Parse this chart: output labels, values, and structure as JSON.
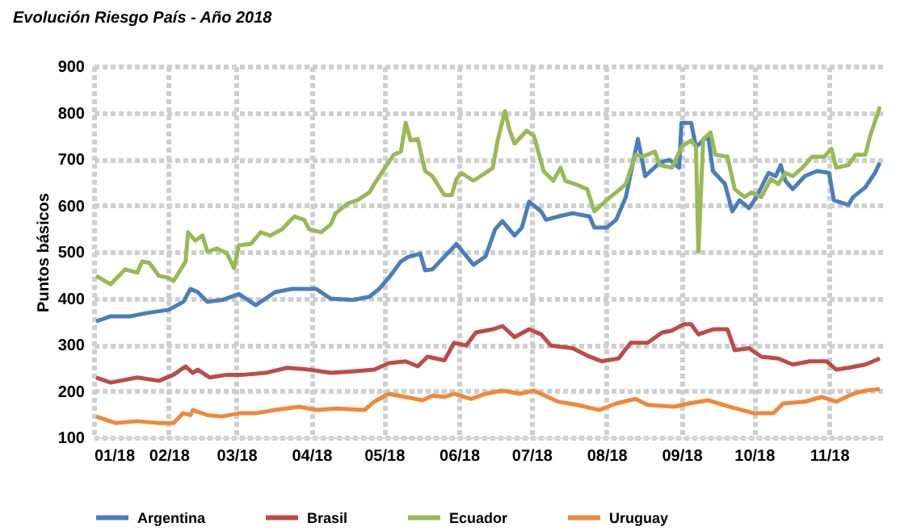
{
  "chart_data": {
    "type": "line",
    "title": "Evolución Riesgo País - Año 2018",
    "ylabel": "Puntos básicos",
    "xlim": [
      "2018-01-01",
      "2018-11-23"
    ],
    "xticks": [
      {
        "value": "2018-01-01",
        "label": "01/18"
      },
      {
        "value": "2018-02-01",
        "label": "02/18"
      },
      {
        "value": "2018-03-01",
        "label": "03/18"
      },
      {
        "value": "2018-04-01",
        "label": "04/18"
      },
      {
        "value": "2018-05-01",
        "label": "05/18"
      },
      {
        "value": "2018-06-01",
        "label": "06/18"
      },
      {
        "value": "2018-07-01",
        "label": "07/18"
      },
      {
        "value": "2018-08-01",
        "label": "08/18"
      },
      {
        "value": "2018-09-01",
        "label": "09/18"
      },
      {
        "value": "2018-10-01",
        "label": "10/18"
      },
      {
        "value": "2018-11-01",
        "label": "11/18"
      }
    ],
    "ylim": [
      100,
      900
    ],
    "yticks": [
      100,
      200,
      300,
      400,
      500,
      600,
      700,
      800,
      900
    ],
    "grid": true,
    "legend": "bottom",
    "series": [
      {
        "name": "Argentina",
        "color": "#4a7ebb",
        "x": [
          "2018-01-02",
          "2018-01-08",
          "2018-01-16",
          "2018-01-23",
          "2018-02-01",
          "2018-02-07",
          "2018-02-10",
          "2018-02-13",
          "2018-02-17",
          "2018-02-23",
          "2018-03-02",
          "2018-03-09",
          "2018-03-17",
          "2018-03-24",
          "2018-04-03",
          "2018-04-09",
          "2018-04-18",
          "2018-04-25",
          "2018-04-29",
          "2018-05-03",
          "2018-05-08",
          "2018-05-11",
          "2018-05-16",
          "2018-05-18",
          "2018-05-21",
          "2018-05-31",
          "2018-06-07",
          "2018-06-12",
          "2018-06-16",
          "2018-06-19",
          "2018-06-24",
          "2018-06-27",
          "2018-06-30",
          "2018-07-05",
          "2018-07-07",
          "2018-07-12",
          "2018-07-18",
          "2018-07-25",
          "2018-07-27",
          "2018-08-01",
          "2018-08-05",
          "2018-08-09",
          "2018-08-14",
          "2018-08-17",
          "2018-08-23",
          "2018-08-27",
          "2018-08-31",
          "2018-09-01",
          "2018-09-05",
          "2018-09-07",
          "2018-09-12",
          "2018-09-14",
          "2018-09-19",
          "2018-09-22",
          "2018-09-25",
          "2018-09-29",
          "2018-10-02",
          "2018-10-07",
          "2018-10-10",
          "2018-10-12",
          "2018-10-14",
          "2018-10-17",
          "2018-10-22",
          "2018-10-27",
          "2018-11-01",
          "2018-11-03",
          "2018-11-09",
          "2018-11-11",
          "2018-11-16",
          "2018-11-20",
          "2018-11-22"
        ],
        "values": [
          350,
          361,
          361,
          368,
          375,
          392,
          420,
          413,
          392,
          396,
          409,
          385,
          413,
          420,
          420,
          399,
          396,
          403,
          420,
          444,
          479,
          489,
          496,
          460,
          462,
          517,
          472,
          490,
          549,
          566,
          535,
          552,
          608,
          587,
          569,
          576,
          583,
          576,
          552,
          552,
          569,
          618,
          743,
          663,
          692,
          698,
          681,
          778,
          778,
          726,
          750,
          674,
          646,
          587,
          611,
          594,
          618,
          670,
          663,
          687,
          653,
          635,
          663,
          674,
          670,
          611,
          601,
          618,
          639,
          670,
          692
        ]
      },
      {
        "name": "Brasil",
        "color": "#be4b48",
        "x": [
          "2018-01-02",
          "2018-01-08",
          "2018-01-19",
          "2018-01-28",
          "2018-02-03",
          "2018-02-08",
          "2018-02-11",
          "2018-02-13",
          "2018-02-18",
          "2018-02-25",
          "2018-03-04",
          "2018-03-13",
          "2018-03-22",
          "2018-03-31",
          "2018-04-09",
          "2018-04-18",
          "2018-04-27",
          "2018-05-03",
          "2018-05-10",
          "2018-05-15",
          "2018-05-19",
          "2018-05-26",
          "2018-05-30",
          "2018-06-04",
          "2018-06-08",
          "2018-06-15",
          "2018-06-19",
          "2018-06-24",
          "2018-06-30",
          "2018-07-05",
          "2018-07-09",
          "2018-07-18",
          "2018-07-25",
          "2018-07-30",
          "2018-08-06",
          "2018-08-11",
          "2018-08-18",
          "2018-08-24",
          "2018-08-28",
          "2018-09-02",
          "2018-09-05",
          "2018-09-08",
          "2018-09-14",
          "2018-09-20",
          "2018-09-23",
          "2018-09-29",
          "2018-10-04",
          "2018-10-11",
          "2018-10-17",
          "2018-10-24",
          "2018-10-31",
          "2018-11-04",
          "2018-11-09",
          "2018-11-16",
          "2018-11-22"
        ],
        "values": [
          229,
          218,
          229,
          222,
          235,
          253,
          239,
          246,
          229,
          235,
          235,
          239,
          250,
          246,
          239,
          242,
          246,
          260,
          264,
          253,
          274,
          266,
          304,
          298,
          326,
          333,
          340,
          316,
          333,
          322,
          298,
          292,
          274,
          264,
          270,
          304,
          304,
          326,
          330,
          344,
          344,
          322,
          333,
          333,
          288,
          292,
          274,
          270,
          257,
          264,
          264,
          246,
          250,
          257,
          270
        ]
      },
      {
        "name": "Ecuador",
        "color": "#98b954",
        "x": [
          "2018-01-02",
          "2018-01-08",
          "2018-01-14",
          "2018-01-19",
          "2018-01-21",
          "2018-01-24",
          "2018-01-28",
          "2018-02-01",
          "2018-02-03",
          "2018-02-08",
          "2018-02-09",
          "2018-02-12",
          "2018-02-15",
          "2018-02-17",
          "2018-02-21",
          "2018-02-25",
          "2018-02-28",
          "2018-03-02",
          "2018-03-07",
          "2018-03-11",
          "2018-03-15",
          "2018-03-20",
          "2018-03-23",
          "2018-03-25",
          "2018-03-29",
          "2018-03-31",
          "2018-04-05",
          "2018-04-09",
          "2018-04-11",
          "2018-04-16",
          "2018-04-20",
          "2018-04-25",
          "2018-04-27",
          "2018-04-30",
          "2018-05-05",
          "2018-05-08",
          "2018-05-10",
          "2018-05-12",
          "2018-05-15",
          "2018-05-18",
          "2018-05-21",
          "2018-05-26",
          "2018-05-29",
          "2018-05-31",
          "2018-06-02",
          "2018-06-07",
          "2018-06-12",
          "2018-06-15",
          "2018-06-17",
          "2018-06-20",
          "2018-06-22",
          "2018-06-24",
          "2018-06-29",
          "2018-07-02",
          "2018-07-06",
          "2018-07-10",
          "2018-07-13",
          "2018-07-15",
          "2018-07-19",
          "2018-07-24",
          "2018-07-27",
          "2018-08-01",
          "2018-08-05",
          "2018-08-09",
          "2018-08-13",
          "2018-08-16",
          "2018-08-21",
          "2018-08-23",
          "2018-08-28",
          "2018-09-01",
          "2018-09-05",
          "2018-09-07",
          "2018-09-08",
          "2018-09-10",
          "2018-09-13",
          "2018-09-15",
          "2018-09-20",
          "2018-09-23",
          "2018-09-27",
          "2018-09-30",
          "2018-10-04",
          "2018-10-08",
          "2018-10-11",
          "2018-10-14",
          "2018-10-17",
          "2018-10-21",
          "2018-10-25",
          "2018-10-30",
          "2018-11-02",
          "2018-11-04",
          "2018-11-09",
          "2018-11-12",
          "2018-11-16",
          "2018-11-18",
          "2018-11-21",
          "2018-11-22"
        ],
        "values": [
          448,
          430,
          462,
          455,
          479,
          476,
          448,
          444,
          437,
          479,
          542,
          524,
          535,
          500,
          507,
          497,
          465,
          514,
          517,
          542,
          535,
          549,
          566,
          576,
          569,
          549,
          542,
          559,
          583,
          604,
          611,
          628,
          646,
          670,
          709,
          716,
          778,
          740,
          743,
          674,
          663,
          622,
          622,
          657,
          670,
          653,
          670,
          681,
          740,
          803,
          761,
          733,
          761,
          750,
          674,
          653,
          681,
          653,
          646,
          635,
          587,
          611,
          628,
          646,
          709,
          705,
          716,
          687,
          681,
          726,
          740,
          726,
          500,
          743,
          757,
          709,
          705,
          635,
          618,
          628,
          618,
          657,
          646,
          670,
          663,
          681,
          705,
          705,
          722,
          681,
          687,
          709,
          709,
          750,
          796,
          813
        ]
      },
      {
        "name": "Uruguay",
        "color": "#f0873a",
        "x": [
          "2018-01-02",
          "2018-01-10",
          "2018-01-19",
          "2018-01-28",
          "2018-02-03",
          "2018-02-07",
          "2018-02-10",
          "2018-02-11",
          "2018-02-17",
          "2018-02-23",
          "2018-03-02",
          "2018-03-09",
          "2018-03-17",
          "2018-03-27",
          "2018-04-03",
          "2018-04-11",
          "2018-04-23",
          "2018-04-27",
          "2018-05-03",
          "2018-05-10",
          "2018-05-17",
          "2018-05-21",
          "2018-05-26",
          "2018-05-30",
          "2018-06-06",
          "2018-06-12",
          "2018-06-19",
          "2018-06-26",
          "2018-07-02",
          "2018-07-12",
          "2018-07-20",
          "2018-07-29",
          "2018-08-05",
          "2018-08-13",
          "2018-08-18",
          "2018-08-29",
          "2018-09-04",
          "2018-09-12",
          "2018-09-21",
          "2018-10-01",
          "2018-10-09",
          "2018-10-13",
          "2018-10-22",
          "2018-10-29",
          "2018-11-04",
          "2018-11-11",
          "2018-11-16",
          "2018-11-22"
        ],
        "values": [
          145,
          131,
          135,
          131,
          131,
          152,
          148,
          159,
          148,
          145,
          152,
          152,
          159,
          166,
          159,
          162,
          159,
          177,
          194,
          187,
          180,
          190,
          187,
          194,
          183,
          194,
          201,
          194,
          201,
          177,
          170,
          159,
          173,
          183,
          170,
          166,
          173,
          180,
          166,
          152,
          152,
          173,
          177,
          187,
          177,
          194,
          201,
          204
        ]
      }
    ]
  }
}
